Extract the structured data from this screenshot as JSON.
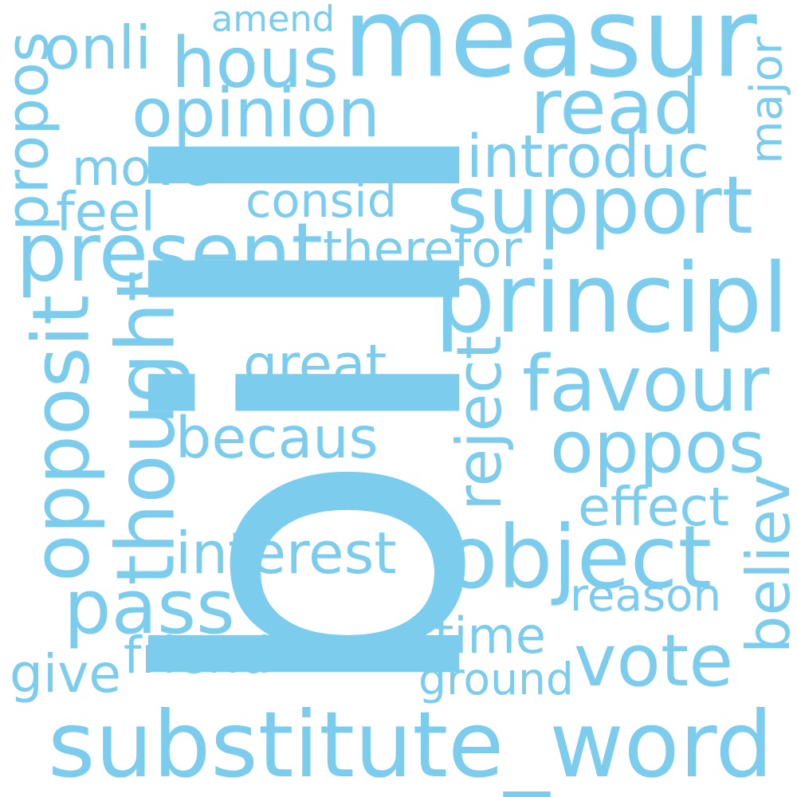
{
  "color": "#7ccced",
  "words": [
    {
      "text": "bill",
      "rotated": true
    },
    {
      "text": "measur",
      "rotated": false
    },
    {
      "text": "substitute_word",
      "rotated": false
    },
    {
      "text": "principl",
      "rotated": false
    },
    {
      "text": "present",
      "rotated": false
    },
    {
      "text": "opposit",
      "rotated": true
    },
    {
      "text": "object",
      "rotated": false
    },
    {
      "text": "thought",
      "rotated": true
    },
    {
      "text": "support",
      "rotated": false
    },
    {
      "text": "favour",
      "rotated": false
    },
    {
      "text": "oppos",
      "rotated": false
    },
    {
      "text": "vote",
      "rotated": false
    },
    {
      "text": "pass",
      "rotated": false
    },
    {
      "text": "hous",
      "rotated": false
    },
    {
      "text": "read",
      "rotated": false
    },
    {
      "text": "becaus",
      "rotated": false
    },
    {
      "text": "opinion",
      "rotated": false
    },
    {
      "text": "propos",
      "rotated": true
    },
    {
      "text": "move",
      "rotated": false
    },
    {
      "text": "introduc",
      "rotated": false
    },
    {
      "text": "reject",
      "rotated": true
    },
    {
      "text": "interest",
      "rotated": false
    },
    {
      "text": "great",
      "rotated": false
    },
    {
      "text": "believ",
      "rotated": true
    },
    {
      "text": "consid",
      "rotated": false
    },
    {
      "text": "therefor",
      "rotated": false
    },
    {
      "text": "ground",
      "rotated": false
    },
    {
      "text": "effect",
      "rotated": false
    },
    {
      "text": "reason",
      "rotated": false
    },
    {
      "text": "time",
      "rotated": false
    },
    {
      "text": "friend",
      "rotated": false
    },
    {
      "text": "give",
      "rotated": false
    },
    {
      "text": "feel",
      "rotated": false
    },
    {
      "text": "onli",
      "rotated": false
    },
    {
      "text": "amend",
      "rotated": false
    },
    {
      "text": "major",
      "rotated": true
    }
  ]
}
